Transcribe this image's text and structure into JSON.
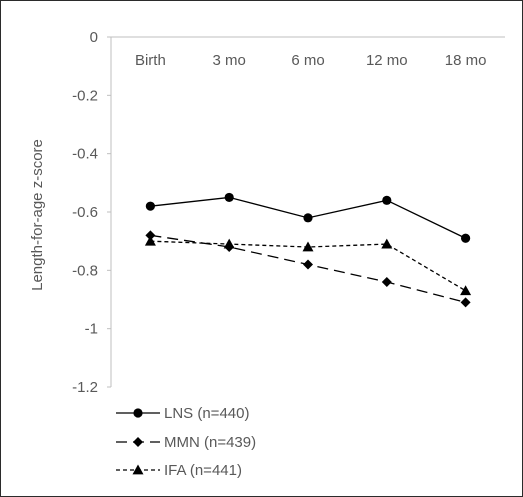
{
  "chart_data": {
    "type": "line",
    "categories": [
      "Birth",
      "3 mo",
      "6 mo",
      "12 mo",
      "18 mo"
    ],
    "ylabel": "Length-for-age z-score",
    "xlabel": "",
    "title": "",
    "ylim": [
      -1.2,
      0
    ],
    "yticks": [
      0,
      -0.2,
      -0.4,
      -0.6,
      -0.8,
      -1,
      -1.2
    ],
    "ytick_labels": [
      "0",
      "-0.2",
      "-0.4",
      "-0.6",
      "-0.8",
      "-1",
      "-1.2"
    ],
    "x_axis_position": "top",
    "grid": false,
    "legend_position": "bottom-left",
    "series": [
      {
        "name": "LNS (n=440)",
        "marker": "circle",
        "dash": "solid",
        "color": "#000000",
        "values": [
          -0.58,
          -0.55,
          -0.62,
          -0.56,
          -0.69
        ]
      },
      {
        "name": "MMN (n=439)",
        "marker": "diamond",
        "dash": "long-dash",
        "color": "#000000",
        "values": [
          -0.68,
          -0.72,
          -0.78,
          -0.84,
          -0.91
        ]
      },
      {
        "name": "IFA (n=441)",
        "marker": "triangle",
        "dash": "short-dash",
        "color": "#000000",
        "values": [
          -0.7,
          -0.71,
          -0.72,
          -0.71,
          -0.87
        ]
      }
    ]
  }
}
